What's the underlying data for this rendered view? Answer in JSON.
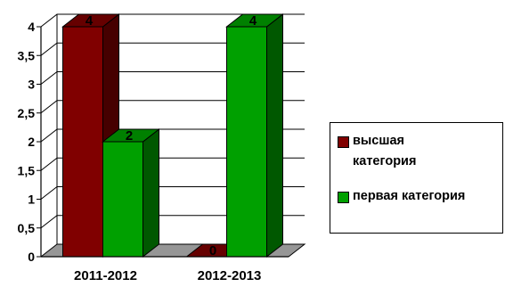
{
  "chart_data": {
    "type": "bar",
    "style": "3d-clustered-column",
    "categories": [
      "2011-2012",
      "2012-2013"
    ],
    "series": [
      {
        "name": "высшая категория",
        "values": [
          4,
          0
        ],
        "color": "#800000"
      },
      {
        "name": "первая категория",
        "values": [
          2,
          4
        ],
        "color": "#00a000"
      }
    ],
    "ylim": [
      0,
      4
    ],
    "y_ticks": [
      "0",
      "0,5",
      "1",
      "1,5",
      "2",
      "2,5",
      "3",
      "3,5",
      "4"
    ],
    "data_labels": [
      "4",
      "0",
      "2",
      "4"
    ],
    "grid": true,
    "legend": "right",
    "floor_color": "#969696"
  },
  "legend": {
    "items": [
      {
        "label": "высшая категория",
        "color": "#800000"
      },
      {
        "label": "первая категория",
        "color": "#00a000"
      }
    ]
  }
}
